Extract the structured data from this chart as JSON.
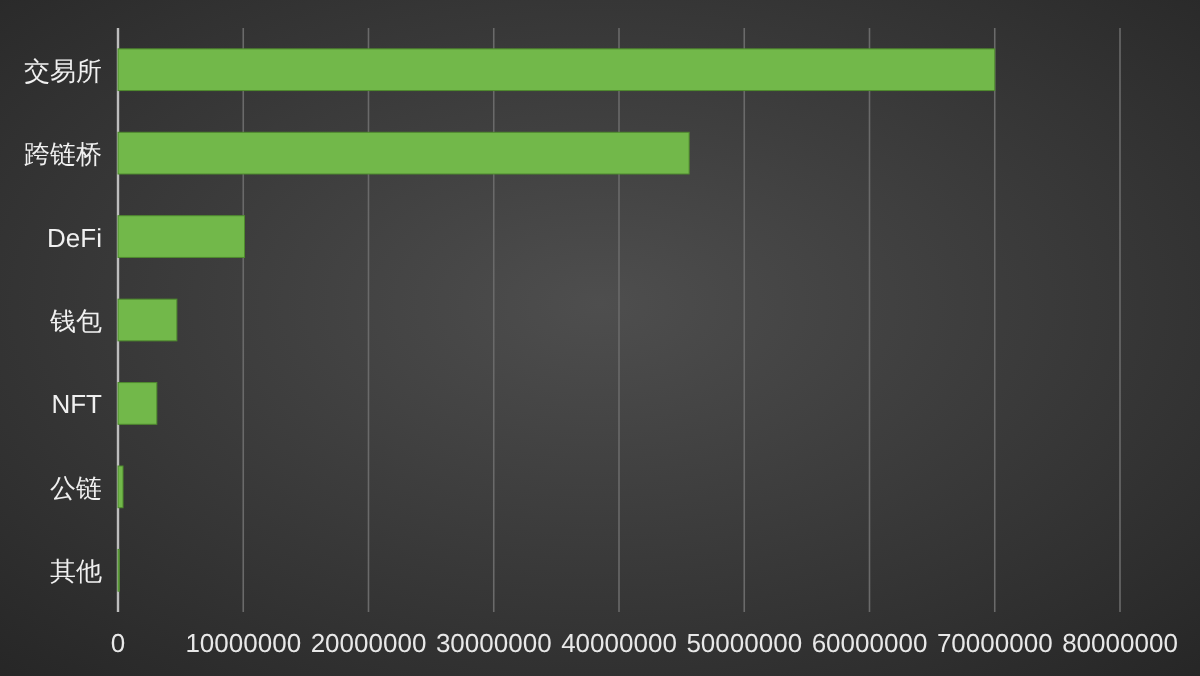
{
  "chart_data": {
    "type": "bar",
    "orientation": "horizontal",
    "categories": [
      "交易所",
      "跨链桥",
      "DeFi",
      "钱包",
      "NFT",
      "公链",
      "其他"
    ],
    "values": [
      70000000,
      45600000,
      10100000,
      4700000,
      3100000,
      400000,
      100000
    ],
    "color": "#72b84a",
    "xlim": [
      0,
      80000000
    ],
    "xticks": [
      0,
      10000000,
      20000000,
      30000000,
      40000000,
      50000000,
      60000000,
      70000000,
      80000000
    ],
    "grid": "x"
  }
}
